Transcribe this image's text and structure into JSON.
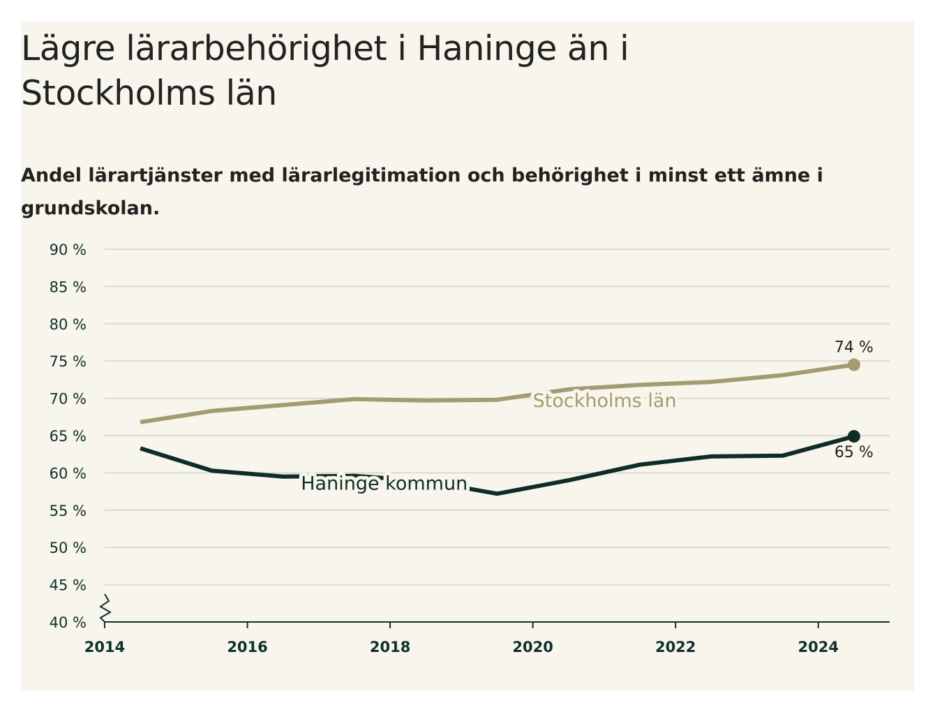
{
  "chart_data": {
    "type": "line",
    "title": "Lägre lärarbehörighet i Haninge än i Stockholms län",
    "subtitle": "Andel lärartjänster med lärarlegitimation och behörighet i minst ett ämne i grundskolan.",
    "xlabel": "",
    "ylabel": "",
    "xlim": [
      2014,
      2025
    ],
    "ylim": [
      40,
      90
    ],
    "y_broken_axis": true,
    "x_ticks": [
      "2014",
      "2016",
      "2018",
      "2020",
      "2022",
      "2024"
    ],
    "y_ticks": [
      "40 %",
      "45 %",
      "50 %",
      "55 %",
      "60 %",
      "65 %",
      "70 %",
      "75 %",
      "80 %",
      "85 %",
      "90 %"
    ],
    "grid": "horizontal",
    "legend": "inline labels",
    "series": [
      {
        "name": "Stockholms län",
        "color": "#a39b71",
        "x": [
          2014.5,
          2015.5,
          2016.5,
          2017.5,
          2018.5,
          2019.5,
          2020.5,
          2021.5,
          2022.5,
          2023.5,
          2024.5
        ],
        "values": [
          66.8,
          68.3,
          69.1,
          69.9,
          69.7,
          69.8,
          71.2,
          71.8,
          72.2,
          73.1,
          74.5
        ],
        "end_label": "74 %"
      },
      {
        "name": "Haninge kommun",
        "color": "#0f2d27",
        "x": [
          2014.5,
          2015.5,
          2016.5,
          2017.5,
          2018.5,
          2019.5,
          2020.5,
          2021.5,
          2022.5,
          2023.5,
          2024.5
        ],
        "values": [
          63.3,
          60.3,
          59.5,
          59.6,
          58.9,
          57.2,
          59.0,
          61.1,
          62.2,
          62.3,
          64.9
        ],
        "end_label": "65 %"
      }
    ]
  }
}
